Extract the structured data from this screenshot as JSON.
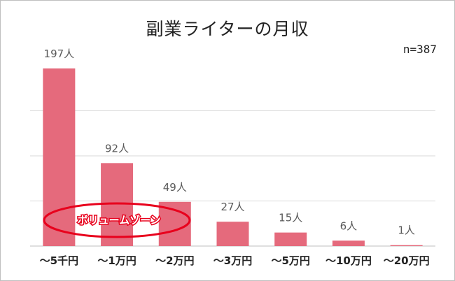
{
  "title": "副業ライターの月収",
  "sample_size": "n=387",
  "annotation": {
    "text": "ボリュームゾーン",
    "color": "#e8001c"
  },
  "colors": {
    "bar": "#e56a7c",
    "grid": "#d9d9d9",
    "axis": "#bfbfbf",
    "value_label": "#595959",
    "tick_label": "#222222"
  },
  "chart_data": {
    "type": "bar",
    "title": "副業ライターの月収",
    "categories": [
      "～5千円",
      "～1万円",
      "～2万円",
      "～3万円",
      "～5万円",
      "～10万円",
      "～20万円"
    ],
    "values": [
      197,
      92,
      49,
      27,
      15,
      6,
      1
    ],
    "value_labels": [
      "197人",
      "92人",
      "49人",
      "27人",
      "15人",
      "6人",
      "1人"
    ],
    "xlabel": "",
    "ylabel": "",
    "ylim": [
      0,
      200
    ],
    "grid": true,
    "legend": "none"
  }
}
